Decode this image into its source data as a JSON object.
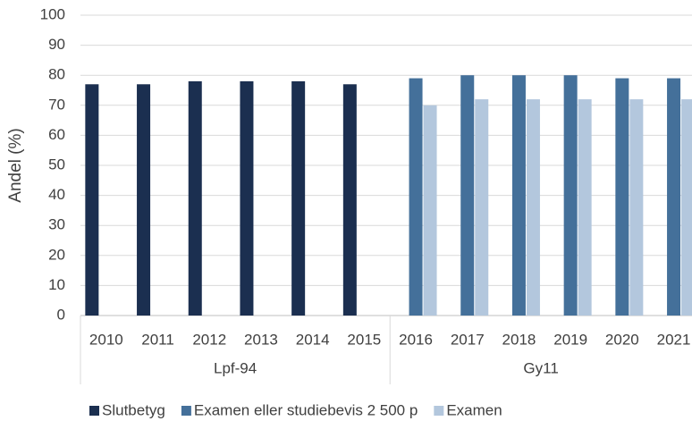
{
  "chart_data": {
    "type": "bar",
    "y_label": "Andel (%)",
    "categories": [
      "2010",
      "2011",
      "2012",
      "2013",
      "2014",
      "2015",
      "2016",
      "2017",
      "2018",
      "2019",
      "2020",
      "2021"
    ],
    "category_groups": [
      "Lpf-94",
      "Lpf-94",
      "Lpf-94",
      "Lpf-94",
      "Lpf-94",
      "Lpf-94",
      "Gy11",
      "Gy11",
      "Gy11",
      "Gy11",
      "Gy11",
      "Gy11"
    ],
    "series": [
      {
        "name": "Slutbetyg",
        "color": "#1b2f50",
        "values": [
          77,
          77,
          78,
          78,
          78,
          77,
          null,
          null,
          null,
          null,
          null,
          null
        ]
      },
      {
        "name": "Examen eller studiebevis 2 500 p",
        "color": "#44709a",
        "values": [
          null,
          null,
          null,
          null,
          null,
          null,
          79,
          80,
          80,
          80,
          79,
          79
        ]
      },
      {
        "name": "Examen",
        "color": "#b3c7dd",
        "values": [
          null,
          null,
          null,
          null,
          null,
          null,
          70,
          72,
          72,
          72,
          72,
          72
        ]
      }
    ],
    "ylim": [
      0,
      100
    ],
    "yticks": [
      0,
      10,
      20,
      30,
      40,
      50,
      60,
      70,
      80,
      90,
      100
    ],
    "grid": true,
    "legend": "bottom"
  }
}
